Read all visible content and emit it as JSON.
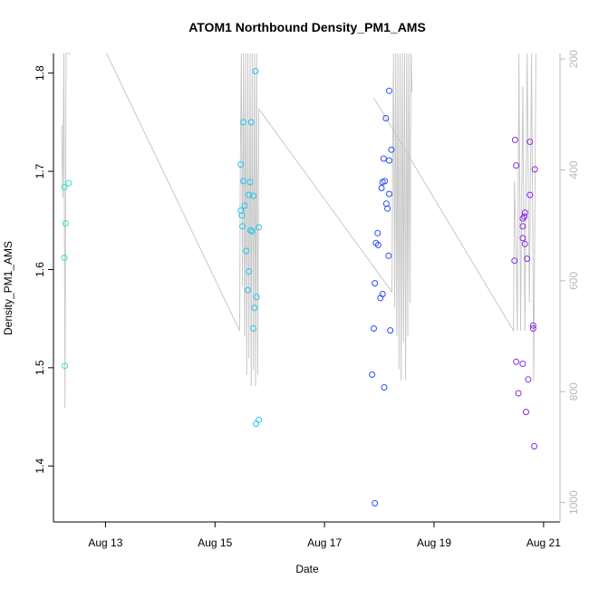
{
  "chart_data": {
    "type": "scatter",
    "title": "ATOM1 Northbound Density_PM1_AMS",
    "xlabel": "Date",
    "ylabel": "Density_PM1_AMS",
    "x_ticks": [
      "Aug 13",
      "Aug 15",
      "Aug 17",
      "Aug 19",
      "Aug 21"
    ],
    "x_tick_days": [
      13,
      15,
      17,
      19,
      21
    ],
    "xlim_days": [
      12.05,
      21.3
    ],
    "y_ticks": [
      1.4,
      1.5,
      1.6,
      1.7,
      1.8
    ],
    "ylim": [
      1.343,
      1.82
    ],
    "secondary_axis": {
      "ticks": [
        200,
        400,
        600,
        800,
        1000
      ],
      "ylim": [
        190,
        1035
      ],
      "inverted": true,
      "color": "#b8b8b8"
    },
    "grid": false,
    "legend": "none",
    "series": [
      {
        "color": "#2ee8c8",
        "points": [
          [
            12.25,
            1.684
          ],
          [
            12.33,
            1.688
          ],
          [
            12.27,
            1.647
          ],
          [
            12.25,
            1.612
          ],
          [
            12.26,
            1.502
          ]
        ]
      },
      {
        "color": "#22c6ee",
        "points": [
          [
            15.52,
            1.75
          ],
          [
            15.66,
            1.75
          ],
          [
            15.74,
            1.802
          ],
          [
            15.47,
            1.707
          ],
          [
            15.52,
            1.69
          ],
          [
            15.64,
            1.689
          ],
          [
            15.62,
            1.676
          ],
          [
            15.7,
            1.675
          ],
          [
            15.54,
            1.665
          ],
          [
            15.47,
            1.66
          ],
          [
            15.49,
            1.655
          ],
          [
            15.5,
            1.644
          ],
          [
            15.8,
            1.643
          ],
          [
            15.65,
            1.64
          ],
          [
            15.68,
            1.639
          ],
          [
            15.57,
            1.619
          ],
          [
            15.62,
            1.598
          ],
          [
            15.6,
            1.579
          ],
          [
            15.76,
            1.572
          ],
          [
            15.72,
            1.561
          ],
          [
            15.7,
            1.54
          ],
          [
            15.8,
            1.447
          ],
          [
            15.75,
            1.443
          ]
        ]
      },
      {
        "color": "#2a4ef0",
        "points": [
          [
            18.18,
            1.782
          ],
          [
            18.12,
            1.754
          ],
          [
            18.22,
            1.722
          ],
          [
            18.08,
            1.713
          ],
          [
            18.18,
            1.711
          ],
          [
            18.1,
            1.69
          ],
          [
            18.06,
            1.689
          ],
          [
            18.04,
            1.683
          ],
          [
            18.18,
            1.677
          ],
          [
            18.13,
            1.667
          ],
          [
            18.15,
            1.662
          ],
          [
            17.97,
            1.637
          ],
          [
            17.94,
            1.627
          ],
          [
            17.98,
            1.625
          ],
          [
            18.17,
            1.614
          ],
          [
            17.92,
            1.586
          ],
          [
            18.06,
            1.575
          ],
          [
            18.02,
            1.571
          ],
          [
            17.9,
            1.54
          ],
          [
            18.2,
            1.538
          ],
          [
            17.87,
            1.493
          ],
          [
            18.09,
            1.48
          ],
          [
            17.92,
            1.362
          ]
        ]
      },
      {
        "color": "#8a2be2",
        "points": [
          [
            20.48,
            1.732
          ],
          [
            20.75,
            1.73
          ],
          [
            20.5,
            1.706
          ],
          [
            20.84,
            1.702
          ],
          [
            20.75,
            1.676
          ],
          [
            20.66,
            1.658
          ],
          [
            20.65,
            1.654
          ],
          [
            20.62,
            1.652
          ],
          [
            20.62,
            1.644
          ],
          [
            20.62,
            1.632
          ],
          [
            20.66,
            1.626
          ],
          [
            20.7,
            1.611
          ],
          [
            20.47,
            1.609
          ],
          [
            20.81,
            1.543
          ],
          [
            20.81,
            1.54
          ],
          [
            20.5,
            1.506
          ],
          [
            20.62,
            1.504
          ],
          [
            20.72,
            1.488
          ],
          [
            20.54,
            1.474
          ],
          [
            20.68,
            1.455
          ],
          [
            20.83,
            1.42
          ]
        ]
      }
    ],
    "secondary_series": {
      "color": "#c8c8c8",
      "segments": [
        [
          [
            12.2,
            320
          ],
          [
            12.22,
            450
          ],
          [
            12.24,
            130
          ],
          [
            12.26,
            830
          ],
          [
            12.28,
            130
          ],
          [
            12.3,
            160
          ],
          [
            12.32,
            180
          ],
          [
            12.34,
            170
          ],
          [
            12.36,
            180
          ]
        ],
        [
          [
            13.02,
            170
          ],
          [
            15.45,
            690
          ],
          [
            15.46,
            420
          ],
          [
            15.48,
            130
          ],
          [
            15.5,
            610
          ],
          [
            15.52,
            130
          ],
          [
            15.54,
            700
          ],
          [
            15.56,
            130
          ],
          [
            15.58,
            770
          ],
          [
            15.6,
            130
          ],
          [
            15.62,
            740
          ],
          [
            15.64,
            130
          ],
          [
            15.66,
            790
          ],
          [
            15.68,
            130
          ],
          [
            15.7,
            760
          ],
          [
            15.72,
            130
          ],
          [
            15.74,
            790
          ],
          [
            15.76,
            130
          ],
          [
            15.78,
            770
          ],
          [
            15.8,
            290
          ]
        ],
        [
          [
            15.8,
            290
          ],
          [
            18.23,
            620
          ],
          [
            18.24,
            430
          ],
          [
            18.26,
            160
          ],
          [
            18.28,
            650
          ],
          [
            18.3,
            130
          ],
          [
            18.32,
            700
          ],
          [
            18.34,
            130
          ],
          [
            18.36,
            760
          ],
          [
            18.38,
            130
          ],
          [
            18.4,
            780
          ],
          [
            18.42,
            130
          ],
          [
            18.44,
            710
          ],
          [
            18.46,
            130
          ],
          [
            18.48,
            780
          ],
          [
            18.5,
            130
          ],
          [
            18.52,
            700
          ],
          [
            18.54,
            130
          ],
          [
            18.56,
            640
          ],
          [
            18.58,
            130
          ],
          [
            18.6,
            260
          ]
        ],
        [
          [
            17.9,
            270
          ],
          [
            20.45,
            690
          ],
          [
            20.47,
            420
          ],
          [
            20.5,
            560
          ],
          [
            20.52,
            690
          ],
          [
            20.55,
            160
          ],
          [
            20.58,
            690
          ],
          [
            20.62,
            250
          ],
          [
            20.66,
            690
          ],
          [
            20.7,
            130
          ],
          [
            20.74,
            640
          ],
          [
            20.78,
            130
          ],
          [
            20.82,
            780
          ],
          [
            20.86,
            130
          ]
        ]
      ]
    }
  }
}
